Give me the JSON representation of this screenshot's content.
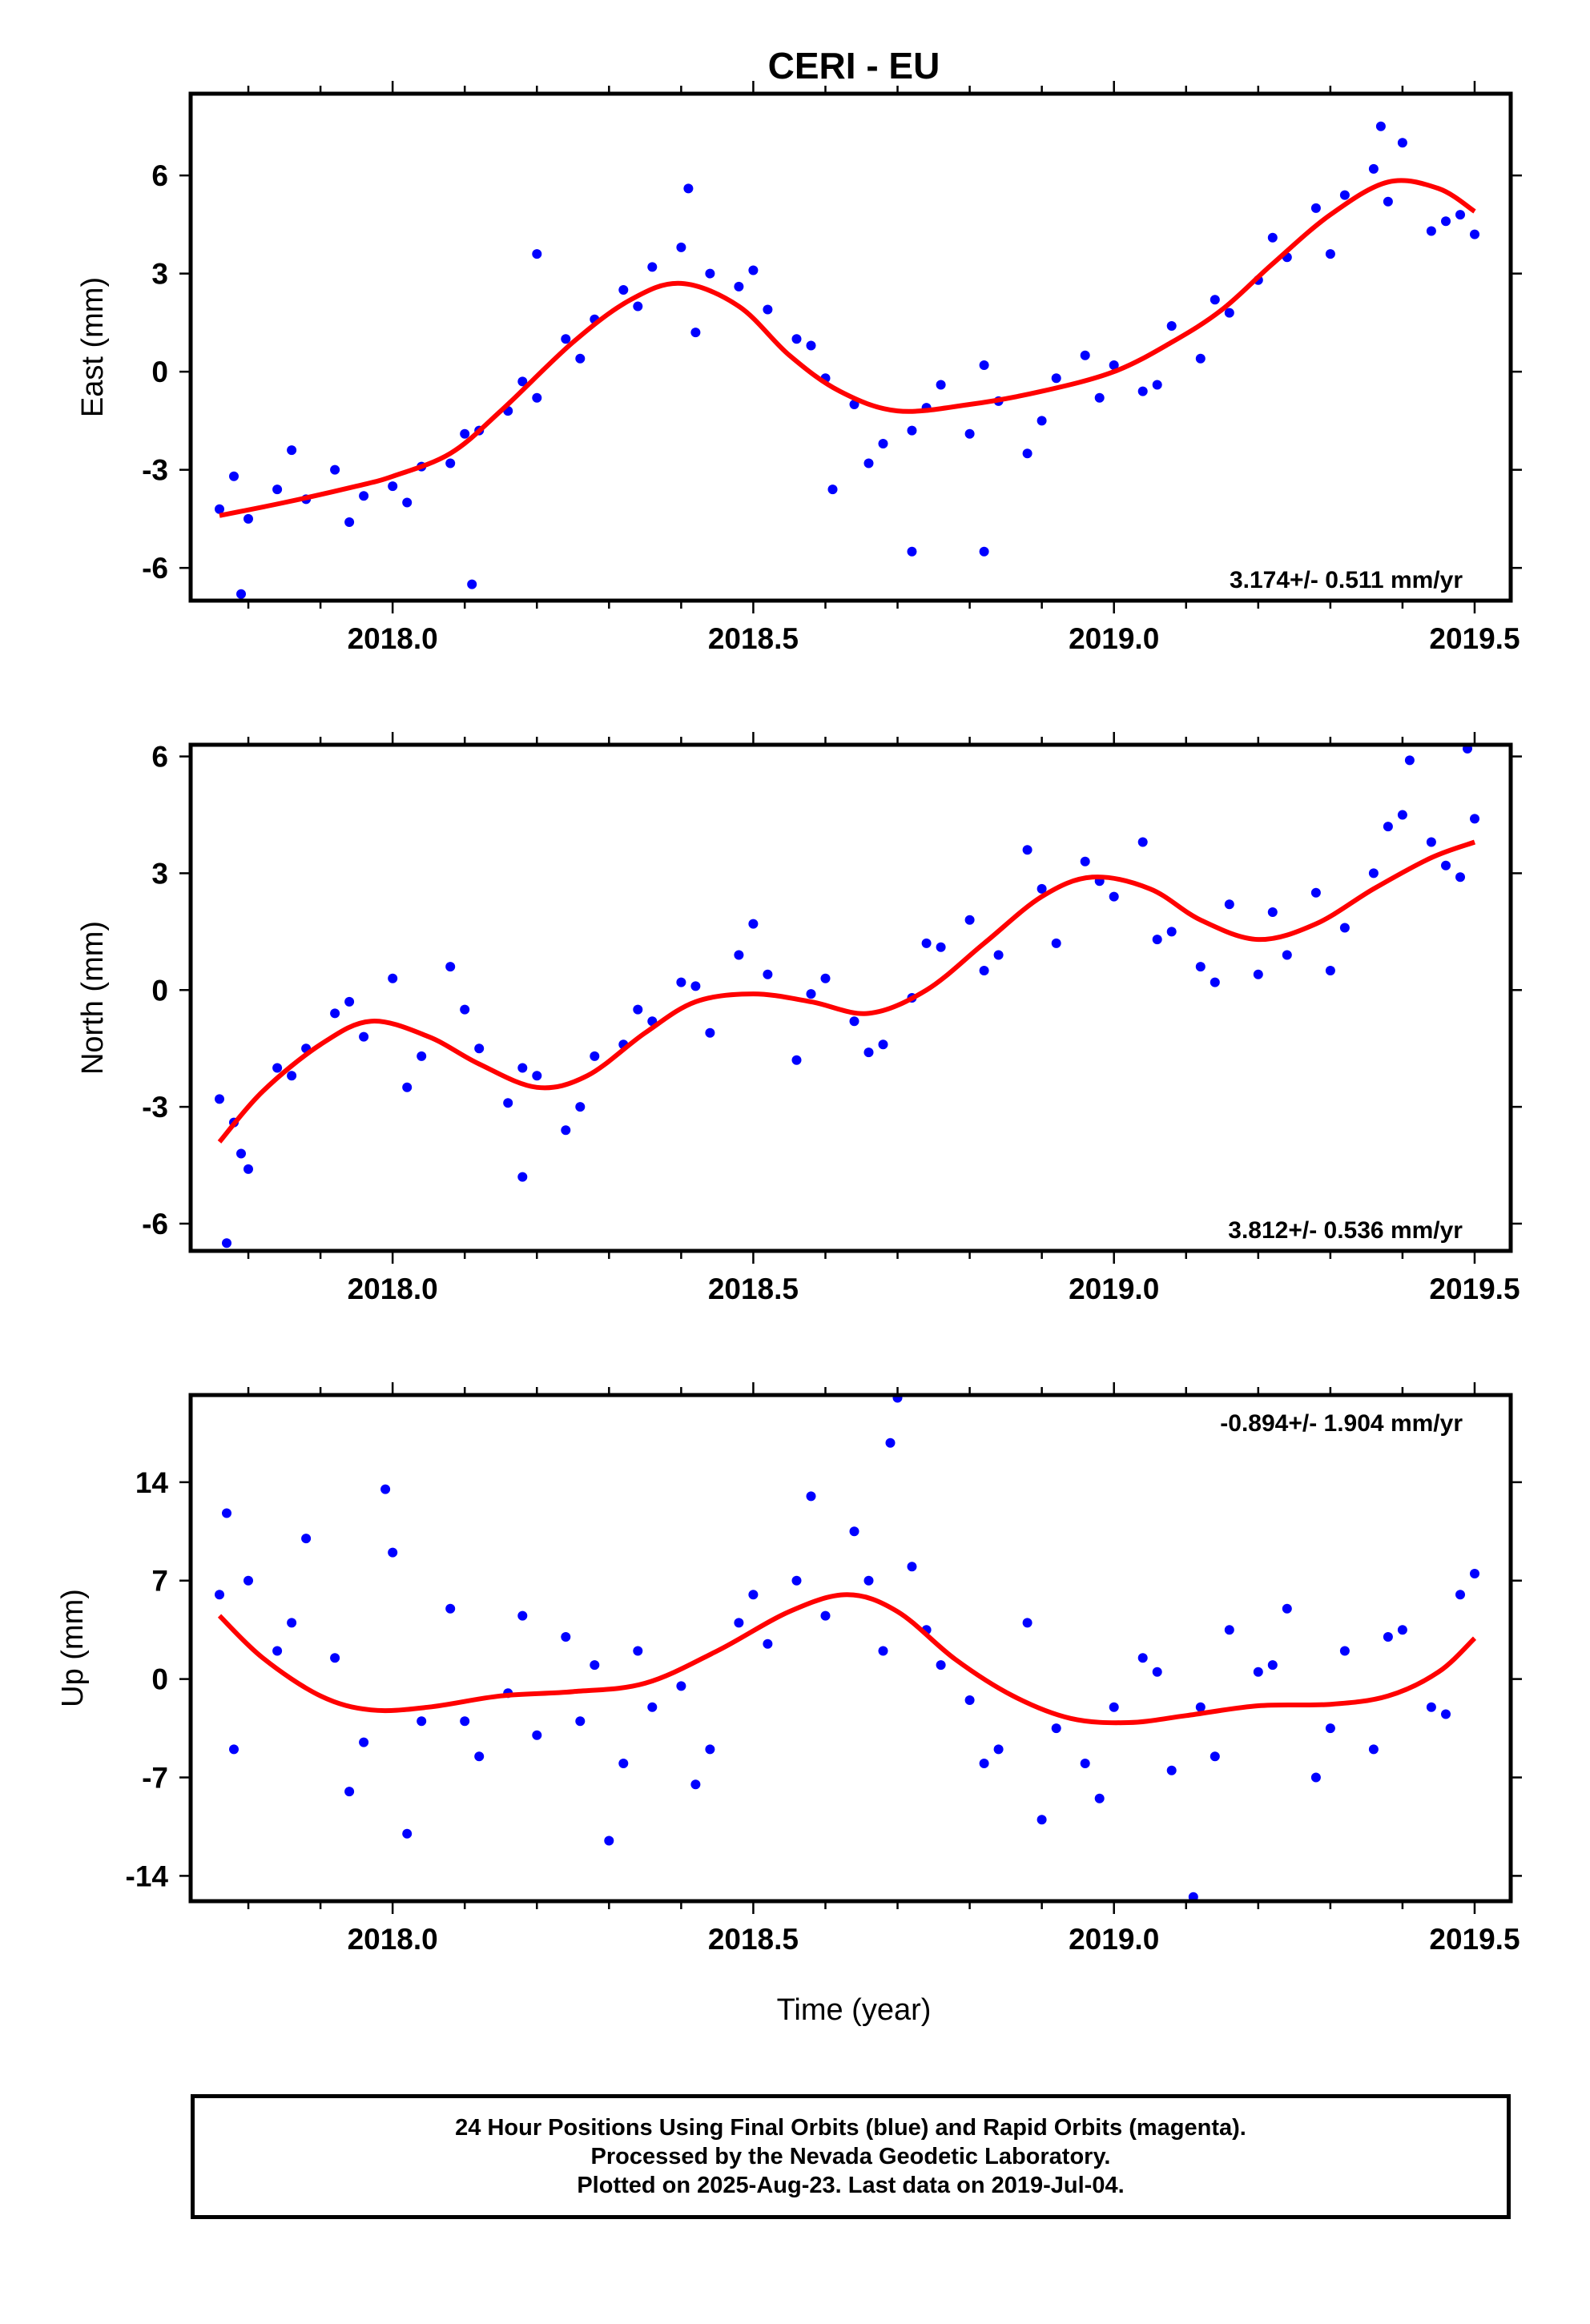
{
  "title": "CERI - EU",
  "xlabel": "Time (year)",
  "footer": {
    "line1": "24 Hour Positions Using Final Orbits (blue) and Rapid Orbits (magenta).",
    "line2": "Processed by the Nevada Geodetic Laboratory.",
    "line3": "Plotted on 2025-Aug-23. Last data on 2019-Jul-04."
  },
  "colors": {
    "points": "#0000ff",
    "fit": "#ff0000"
  },
  "chart_data": [
    {
      "type": "scatter",
      "name": "east",
      "ylabel": "East (mm)",
      "rate_text": "3.174+/- 0.511 mm/yr",
      "rate_position": "bottom-right",
      "xlim": [
        2017.72,
        2019.55
      ],
      "ylim": [
        -7,
        8.5
      ],
      "xticks": [
        2018.0,
        2018.5,
        2019.0,
        2019.5
      ],
      "xtick_labels": [
        "2018.0",
        "2018.5",
        "2019.0",
        "2019.5"
      ],
      "yticks": [
        -6,
        -3,
        0,
        3,
        6
      ],
      "ytick_labels": [
        "-6",
        "-3",
        "0",
        "3",
        "6"
      ],
      "fit_curve": {
        "x": [
          2017.76,
          2017.85,
          2017.95,
          2018.0,
          2018.08,
          2018.15,
          2018.25,
          2018.33,
          2018.4,
          2018.48,
          2018.55,
          2018.62,
          2018.7,
          2018.8,
          2018.9,
          2019.0,
          2019.08,
          2019.15,
          2019.22,
          2019.3,
          2019.38,
          2019.45,
          2019.5
        ],
        "y": [
          -4.4,
          -4.0,
          -3.5,
          -3.2,
          -2.5,
          -1.2,
          0.9,
          2.2,
          2.7,
          2.0,
          0.5,
          -0.6,
          -1.2,
          -1.0,
          -0.6,
          0.0,
          0.9,
          1.9,
          3.3,
          4.8,
          5.8,
          5.6,
          4.9
        ]
      },
      "points": {
        "x": [
          2017.76,
          2017.8,
          2017.84,
          2017.88,
          2017.92,
          2017.96,
          2018.0,
          2018.04,
          2018.08,
          2018.12,
          2018.16,
          2018.2,
          2018.24,
          2018.28,
          2018.32,
          2018.36,
          2018.4,
          2018.44,
          2018.48,
          2018.52,
          2018.56,
          2018.6,
          2018.64,
          2018.68,
          2018.72,
          2018.76,
          2018.8,
          2018.84,
          2018.88,
          2018.92,
          2018.96,
          2019.0,
          2019.04,
          2019.08,
          2019.12,
          2019.16,
          2019.2,
          2019.24,
          2019.28,
          2019.32,
          2019.36,
          2019.4,
          2019.44,
          2019.48,
          2019.5,
          2017.78,
          2017.86,
          2017.94,
          2018.02,
          2018.1,
          2018.18,
          2018.26,
          2018.34,
          2018.42,
          2018.5,
          2018.58,
          2018.66,
          2018.74,
          2018.82,
          2018.9,
          2018.98,
          2019.06,
          2019.14,
          2019.22,
          2019.3,
          2019.38,
          2019.46,
          2017.79,
          2018.11,
          2018.61,
          2018.72,
          2018.82,
          2019.37,
          2018.41,
          2018.2
        ],
        "y": [
          -4.2,
          -4.5,
          -3.6,
          -3.9,
          -3.0,
          -3.8,
          -3.5,
          -2.9,
          -2.8,
          -1.8,
          -1.2,
          -0.8,
          1.0,
          1.6,
          2.5,
          3.2,
          3.8,
          3.0,
          2.6,
          1.9,
          1.0,
          -0.2,
          -1.0,
          -2.2,
          -1.8,
          -0.4,
          -1.9,
          -0.9,
          -2.5,
          -0.2,
          0.5,
          0.2,
          -0.6,
          1.4,
          0.4,
          1.8,
          2.8,
          3.5,
          5.0,
          5.4,
          6.2,
          7.0,
          4.3,
          4.8,
          4.2,
          -3.2,
          -2.4,
          -4.6,
          -4.0,
          -1.9,
          -0.3,
          0.4,
          2.0,
          1.2,
          3.1,
          0.8,
          -2.8,
          -1.1,
          0.2,
          -1.5,
          -0.8,
          -0.4,
          2.2,
          4.1,
          3.6,
          5.2,
          4.6,
          -6.8,
          -6.5,
          -3.6,
          -5.5,
          -5.5,
          7.5,
          5.6,
          3.6
        ]
      }
    },
    {
      "type": "scatter",
      "name": "north",
      "ylabel": "North (mm)",
      "rate_text": "3.812+/- 0.536 mm/yr",
      "rate_position": "bottom-right",
      "xlim": [
        2017.72,
        2019.55
      ],
      "ylim": [
        -6.7,
        6.3
      ],
      "xticks": [
        2018.0,
        2018.5,
        2019.0,
        2019.5
      ],
      "xtick_labels": [
        "2018.0",
        "2018.5",
        "2019.0",
        "2019.5"
      ],
      "yticks": [
        -6,
        -3,
        0,
        3,
        6
      ],
      "ytick_labels": [
        "-6",
        "-3",
        "0",
        "3",
        "6"
      ],
      "fit_curve": {
        "x": [
          2017.76,
          2017.82,
          2017.9,
          2017.97,
          2018.05,
          2018.12,
          2018.2,
          2018.27,
          2018.35,
          2018.42,
          2018.5,
          2018.58,
          2018.66,
          2018.74,
          2018.82,
          2018.9,
          2018.97,
          2019.05,
          2019.12,
          2019.2,
          2019.28,
          2019.36,
          2019.44,
          2019.5
        ],
        "y": [
          -3.9,
          -2.6,
          -1.4,
          -0.8,
          -1.2,
          -1.9,
          -2.5,
          -2.2,
          -1.1,
          -0.3,
          -0.1,
          -0.3,
          -0.6,
          0.0,
          1.2,
          2.4,
          2.9,
          2.6,
          1.8,
          1.3,
          1.7,
          2.6,
          3.4,
          3.8
        ]
      },
      "points": {
        "x": [
          2017.76,
          2017.8,
          2017.84,
          2017.88,
          2017.92,
          2017.96,
          2018.0,
          2018.04,
          2018.08,
          2018.12,
          2018.16,
          2018.2,
          2018.24,
          2018.28,
          2018.32,
          2018.36,
          2018.4,
          2018.44,
          2018.48,
          2018.52,
          2018.56,
          2018.6,
          2018.64,
          2018.68,
          2018.72,
          2018.76,
          2018.8,
          2018.84,
          2018.88,
          2018.92,
          2018.96,
          2019.0,
          2019.04,
          2019.08,
          2019.12,
          2019.16,
          2019.2,
          2019.24,
          2019.28,
          2019.32,
          2019.36,
          2019.4,
          2019.44,
          2019.48,
          2019.5,
          2017.78,
          2017.86,
          2017.94,
          2018.02,
          2018.1,
          2018.18,
          2018.26,
          2018.34,
          2018.42,
          2018.5,
          2018.58,
          2018.66,
          2018.74,
          2018.82,
          2018.9,
          2018.98,
          2019.06,
          2019.14,
          2019.22,
          2019.3,
          2019.38,
          2019.46,
          2017.77,
          2017.79,
          2018.18,
          2019.49,
          2019.41
        ],
        "y": [
          -2.8,
          -4.6,
          -2.0,
          -1.5,
          -0.6,
          -1.2,
          0.3,
          -1.7,
          0.6,
          -1.5,
          -2.9,
          -2.2,
          -3.6,
          -1.7,
          -1.4,
          -0.8,
          0.2,
          -1.1,
          0.9,
          0.4,
          -1.8,
          0.3,
          -0.8,
          -1.4,
          -0.2,
          1.1,
          1.8,
          0.9,
          3.6,
          1.2,
          3.3,
          2.4,
          3.8,
          1.5,
          0.6,
          2.2,
          0.4,
          0.9,
          2.5,
          1.6,
          3.0,
          4.5,
          3.8,
          2.9,
          4.4,
          -3.4,
          -2.2,
          -0.3,
          -2.5,
          -0.5,
          -2.0,
          -3.0,
          -0.5,
          0.1,
          1.7,
          -0.1,
          -1.6,
          1.2,
          0.5,
          2.6,
          2.8,
          1.3,
          0.2,
          2.0,
          0.5,
          4.2,
          3.2,
          -6.5,
          -4.2,
          -4.8,
          6.2,
          5.9
        ]
      }
    },
    {
      "type": "scatter",
      "name": "up",
      "ylabel": "Up (mm)",
      "rate_text": "-0.894+/- 1.904 mm/yr",
      "rate_position": "top-right",
      "xlim": [
        2017.72,
        2019.55
      ],
      "ylim": [
        -15.8,
        20.2
      ],
      "xticks": [
        2018.0,
        2018.5,
        2019.0,
        2019.5
      ],
      "xtick_labels": [
        "2018.0",
        "2018.5",
        "2019.0",
        "2019.5"
      ],
      "yticks": [
        -14,
        -7,
        0,
        7,
        14
      ],
      "ytick_labels": [
        "-14",
        "-7",
        "0",
        "7",
        "14"
      ],
      "fit_curve": {
        "x": [
          2017.76,
          2017.82,
          2017.9,
          2017.97,
          2018.05,
          2018.15,
          2018.25,
          2018.35,
          2018.45,
          2018.55,
          2018.63,
          2018.7,
          2018.78,
          2018.86,
          2018.94,
          2019.02,
          2019.1,
          2019.2,
          2019.3,
          2019.38,
          2019.45,
          2019.5
        ],
        "y": [
          4.5,
          1.5,
          -1.2,
          -2.2,
          -2.0,
          -1.2,
          -0.9,
          -0.3,
          2.0,
          4.8,
          6.0,
          4.8,
          1.4,
          -1.2,
          -2.8,
          -3.1,
          -2.6,
          -1.9,
          -1.8,
          -1.2,
          0.5,
          2.9
        ]
      },
      "points": {
        "x": [
          2017.76,
          2017.8,
          2017.84,
          2017.88,
          2017.92,
          2017.96,
          2018.0,
          2018.04,
          2018.08,
          2018.12,
          2018.16,
          2018.2,
          2018.24,
          2018.28,
          2018.32,
          2018.36,
          2018.4,
          2018.44,
          2018.48,
          2018.52,
          2018.56,
          2018.6,
          2018.64,
          2018.68,
          2018.72,
          2018.76,
          2018.8,
          2018.84,
          2018.88,
          2018.92,
          2018.96,
          2019.0,
          2019.04,
          2019.08,
          2019.12,
          2019.16,
          2019.2,
          2019.24,
          2019.28,
          2019.32,
          2019.36,
          2019.4,
          2019.44,
          2019.48,
          2019.5,
          2017.78,
          2017.86,
          2017.94,
          2018.02,
          2018.1,
          2018.18,
          2018.26,
          2018.34,
          2018.42,
          2018.5,
          2018.58,
          2018.66,
          2018.74,
          2018.82,
          2018.9,
          2018.98,
          2019.06,
          2019.14,
          2019.22,
          2019.3,
          2019.38,
          2019.46,
          2018.69,
          2018.7,
          2019.11,
          2017.99,
          2018.3,
          2017.77
        ],
        "y": [
          6.0,
          7.0,
          2.0,
          10.0,
          1.5,
          -4.5,
          9.0,
          -3.0,
          5.0,
          -5.5,
          -1.0,
          -4.0,
          3.0,
          1.0,
          -6.0,
          -2.0,
          -0.5,
          -5.0,
          4.0,
          2.5,
          7.0,
          4.5,
          10.5,
          2.0,
          8.0,
          1.0,
          -1.5,
          -5.0,
          4.0,
          -3.5,
          -6.0,
          -2.0,
          1.5,
          -6.5,
          -2.0,
          3.5,
          0.5,
          5.0,
          -7.0,
          2.0,
          -5.0,
          3.5,
          -2.0,
          6.0,
          7.5,
          -5.0,
          4.0,
          -8.0,
          -11.0,
          -3.0,
          4.5,
          -3.0,
          2.0,
          -7.5,
          6.0,
          13.0,
          7.0,
          3.5,
          -6.0,
          -10.0,
          -8.5,
          0.5,
          -5.5,
          1.0,
          -3.5,
          3.0,
          -2.5,
          16.8,
          20.0,
          -15.5,
          13.5,
          -11.5,
          11.8
        ]
      }
    }
  ]
}
